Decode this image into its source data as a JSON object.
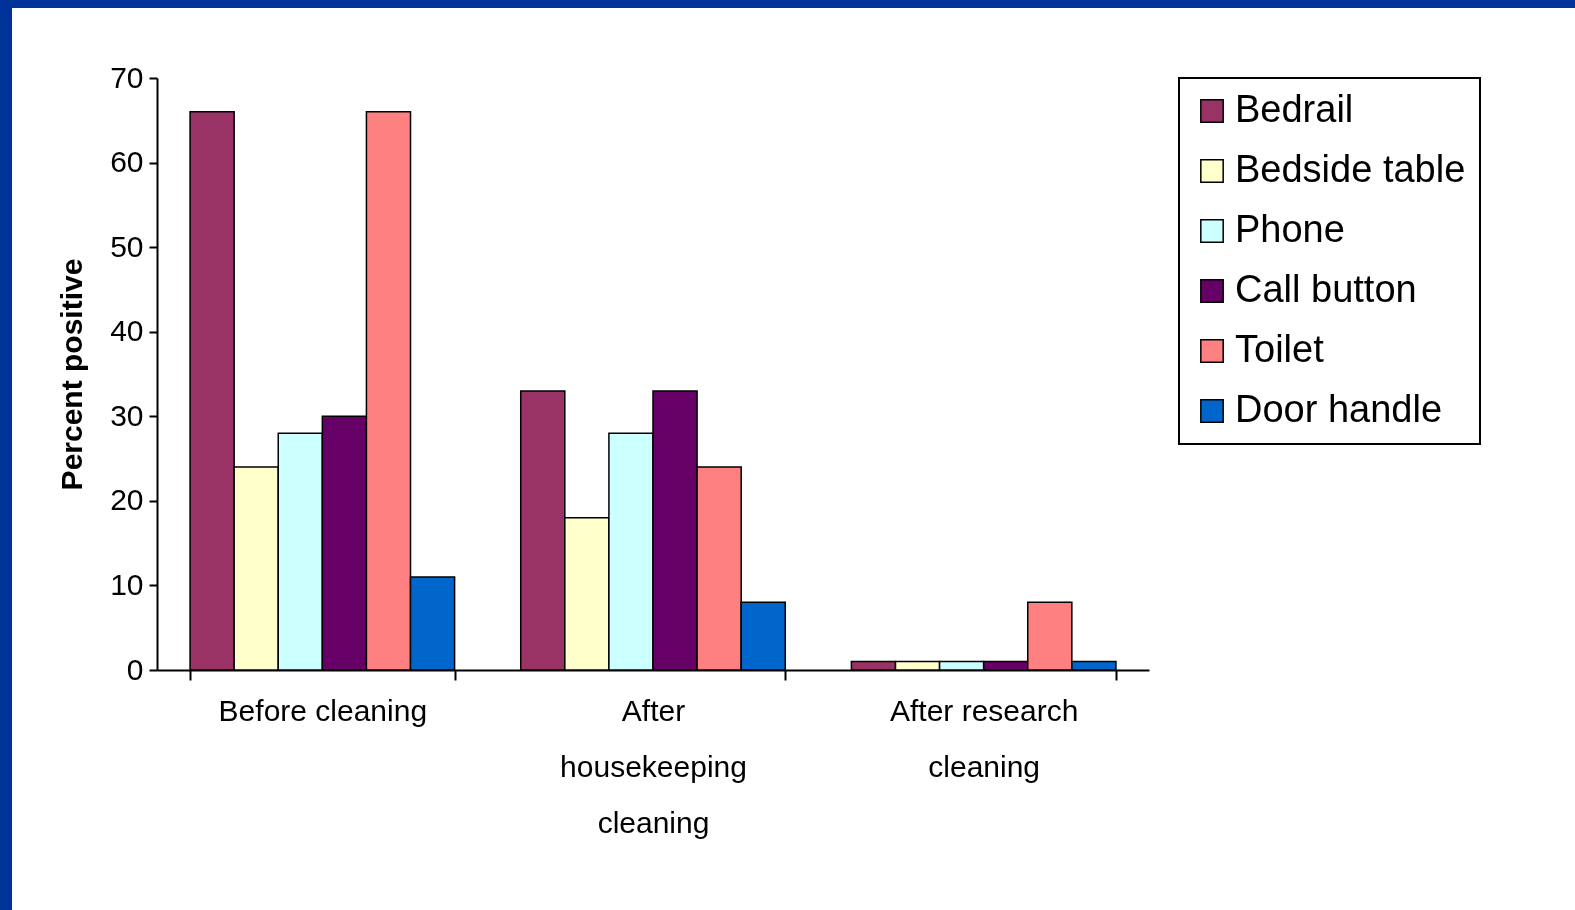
{
  "chart_data": {
    "type": "bar",
    "ylabel": "Percent positive",
    "categories": [
      "Before cleaning",
      "After housekeeping cleaning",
      "After research cleaning"
    ],
    "series": [
      {
        "name": "Bedrail",
        "color": "#993366",
        "values": [
          66,
          33,
          1
        ]
      },
      {
        "name": "Bedside table",
        "color": "#ffffcc",
        "values": [
          24,
          18,
          1
        ]
      },
      {
        "name": "Phone",
        "color": "#ccffff",
        "values": [
          28,
          28,
          1
        ]
      },
      {
        "name": "Call button",
        "color": "#660066",
        "values": [
          30,
          33,
          1
        ]
      },
      {
        "name": "Toilet",
        "color": "#ff8080",
        "values": [
          66,
          24,
          8
        ]
      },
      {
        "name": "Door handle",
        "color": "#0066cc",
        "values": [
          11,
          8,
          1
        ]
      }
    ],
    "ylim": [
      0,
      70
    ],
    "yticks": [
      0,
      10,
      20,
      30,
      40,
      50,
      60,
      70
    ],
    "grid": false,
    "legend": "right"
  }
}
